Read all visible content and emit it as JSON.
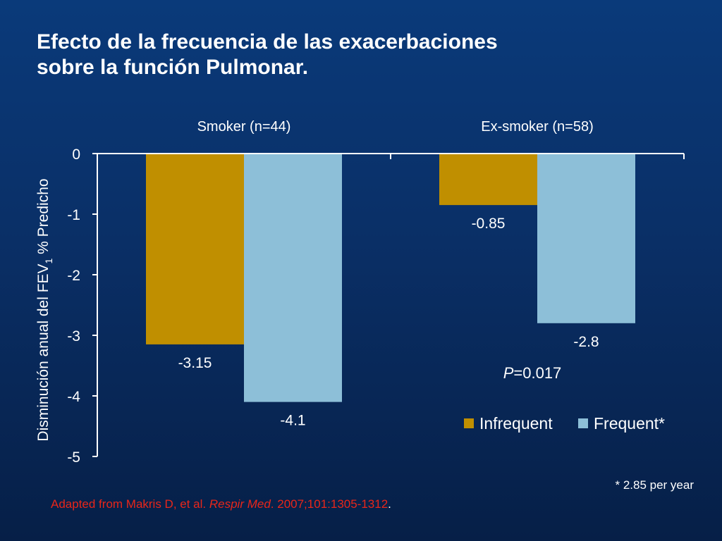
{
  "slide": {
    "title_line1": "Efecto de la frecuencia de las exacerbaciones",
    "title_line2": "sobre la función Pulmonar.",
    "footnote": "* 2.85 per year",
    "source_prefix": "Adapted from Makris D, et al. ",
    "source_journal": "Respir Med",
    "source_suffix": ". 2007;101:1305-1312",
    "source_end": "."
  },
  "chart_data": {
    "type": "bar",
    "categories": [
      "Smoker (n=44)",
      "Ex-smoker (n=58)"
    ],
    "series": [
      {
        "name": "Infrequent",
        "values": [
          -3.15,
          -0.85
        ],
        "labels": [
          "-3.15",
          "-0.85"
        ],
        "color": "#c08f00"
      },
      {
        "name": "Frequent*",
        "values": [
          -4.1,
          -2.8
        ],
        "labels": [
          "-4.1",
          "-2.8"
        ],
        "color": "#8dbfd8"
      }
    ],
    "ylabel_main": "Disminución anual del FEV",
    "ylabel_sub": "1",
    "ylabel_tail": " % Predicho",
    "ylim": [
      -5,
      0
    ],
    "yticks": [
      "0",
      "-1",
      "-2",
      "-3",
      "-4",
      "-5"
    ],
    "annotation_italic": "P",
    "annotation_rest": "=0.017",
    "legend_position": "bottom-right",
    "grid": false
  }
}
